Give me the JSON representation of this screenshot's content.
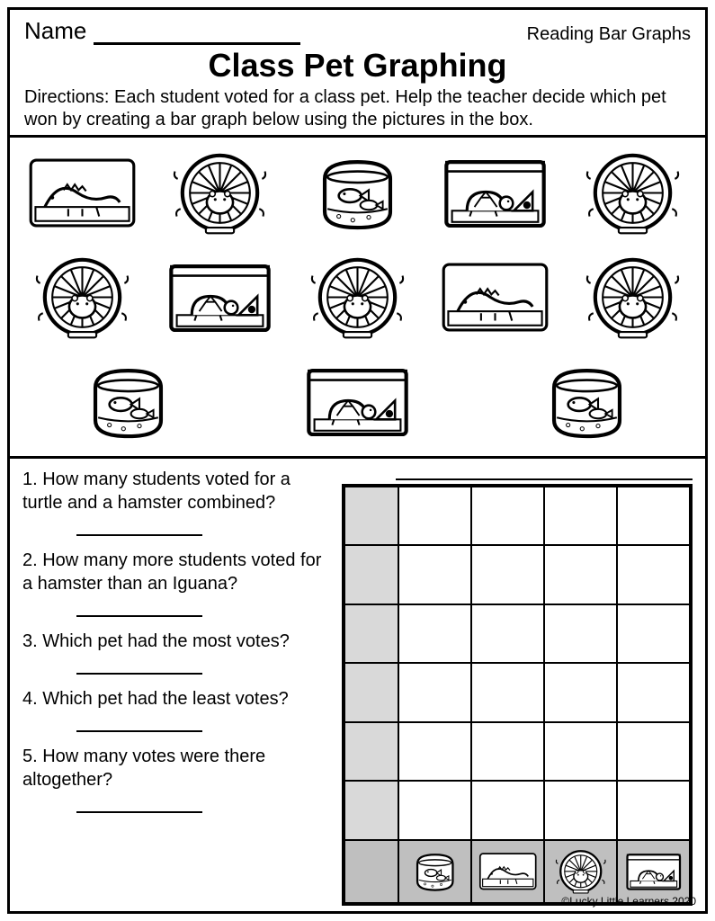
{
  "header": {
    "name_label": "Name",
    "topic": "Reading Bar Graphs",
    "title": "Class Pet Graphing",
    "directions": "Directions:  Each student voted for a class pet.  Help the teacher decide which pet won by creating a bar graph below using the pictures in the box."
  },
  "picture_box": {
    "pets": [
      "iguana",
      "hamster",
      "fish",
      "turtle",
      "hamster",
      "hamster",
      "turtle",
      "hamster",
      "iguana",
      "hamster",
      "fish",
      "turtle",
      "fish"
    ],
    "counts": {
      "iguana": 2,
      "hamster": 5,
      "fish": 3,
      "turtle": 3
    }
  },
  "questions": [
    "1. How many students voted for a turtle and a hamster combined?",
    "2. How many more students voted for a hamster than an Iguana?",
    "3. Which pet had the most votes?",
    "4. Which pet had the least votes?",
    "5.  How many votes were there altogether?"
  ],
  "graph": {
    "type": "bar",
    "rows": 7,
    "columns": 5,
    "y_axis_shaded_color": "#d9d9d9",
    "bottom_row_color": "#bfbfbf",
    "border_color": "#000000",
    "cell_border_width": 1,
    "outer_border_width": 3,
    "x_categories": [
      "fish",
      "iguana",
      "hamster",
      "turtle"
    ],
    "y_max": 6,
    "y_step": 1
  },
  "footer": "©Lucky Little Learners 2020",
  "colors": {
    "page_border": "#000000",
    "text": "#000000",
    "background": "#ffffff"
  },
  "fonts": {
    "body_family": "Comic Sans / Century Gothic style",
    "title_size_pt": 28,
    "body_size_pt": 15
  }
}
